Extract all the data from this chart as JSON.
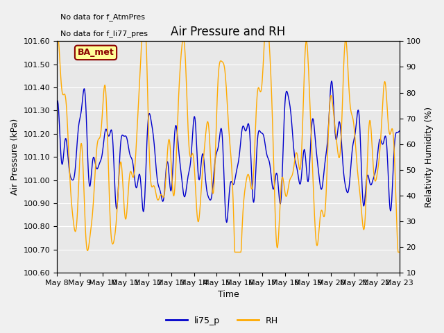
{
  "title": "Air Pressure and RH",
  "xlabel": "Time",
  "ylabel_left": "Air Pressure (kPa)",
  "ylabel_right": "Relativity Humidity (%)",
  "no_data_text1": "No data for f_AtmPres",
  "no_data_text2": "No data for f_li77_pres",
  "ba_met_label": "BA_met",
  "legend_labels": [
    "li75_p",
    "RH"
  ],
  "line_colors": [
    "#0000cc",
    "#ffaa00"
  ],
  "ylim_left": [
    100.6,
    101.6
  ],
  "ylim_right": [
    10,
    100
  ],
  "yticks_left": [
    100.6,
    100.7,
    100.8,
    100.9,
    101.0,
    101.1,
    101.2,
    101.3,
    101.4,
    101.5,
    101.6
  ],
  "yticks_right": [
    10,
    20,
    30,
    40,
    50,
    60,
    70,
    80,
    90,
    100
  ],
  "xtick_labels": [
    "May 8",
    "May 9",
    "May 10",
    "May 11",
    "May 12",
    "May 13",
    "May 14",
    "May 15",
    "May 16",
    "May 17",
    "May 18",
    "May 19",
    "May 20",
    "May 21",
    "May 22",
    "May 23"
  ],
  "background_color": "#e8e8e8",
  "fig_background": "#f0f0f0",
  "grid_color": "#ffffff",
  "title_fontsize": 12,
  "axis_fontsize": 9,
  "tick_fontsize": 8,
  "ba_box_facecolor": "#ffff99",
  "ba_box_edgecolor": "#8b0000",
  "ba_text_color": "#8b0000",
  "no_data_fontsize": 8,
  "legend_fontsize": 9
}
